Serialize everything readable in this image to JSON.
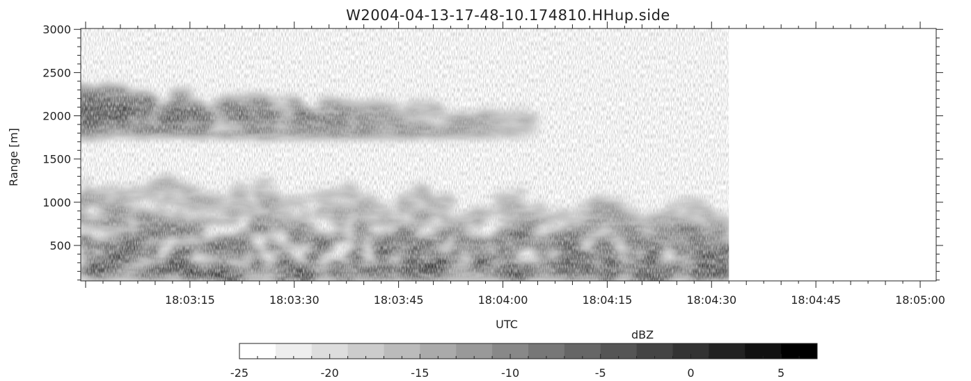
{
  "chart_data": {
    "type": "heatmap",
    "title": "W2004-04-13-17-48-10.174810.HHup.side",
    "xlabel": "UTC",
    "ylabel": "Range [m]",
    "x_ticks": [
      "18:03:15",
      "18:03:30",
      "18:03:45",
      "18:04:00",
      "18:04:15",
      "18:04:30",
      "18:04:45",
      "18:05:00"
    ],
    "x_tick_seconds": [
      195,
      210,
      225,
      240,
      255,
      270,
      285,
      300
    ],
    "x_range_seconds": [
      179.3,
      302.3
    ],
    "data_end_seconds": 272.5,
    "y_ticks": [
      500,
      1000,
      1500,
      2000,
      2500,
      3000
    ],
    "ylim": [
      90,
      3010
    ],
    "colorbar": {
      "label": "dBZ",
      "range": [
        -25,
        7
      ],
      "ticks": [
        -25,
        -20,
        -15,
        -10,
        -5,
        0,
        5
      ],
      "levels": 16,
      "colormap": "white-to-black greyscale"
    },
    "layers": [
      {
        "name": "upper cloud layer",
        "range_m": [
          1750,
          2620
        ],
        "time_seconds": [
          179.3,
          245
        ],
        "dbz_approx": [
          -15,
          3
        ]
      },
      {
        "name": "lower boundary-layer echo",
        "range_m": [
          90,
          1300
        ],
        "time_seconds": [
          179.3,
          272.5
        ],
        "dbz_approx": [
          -18,
          5
        ]
      }
    ]
  }
}
